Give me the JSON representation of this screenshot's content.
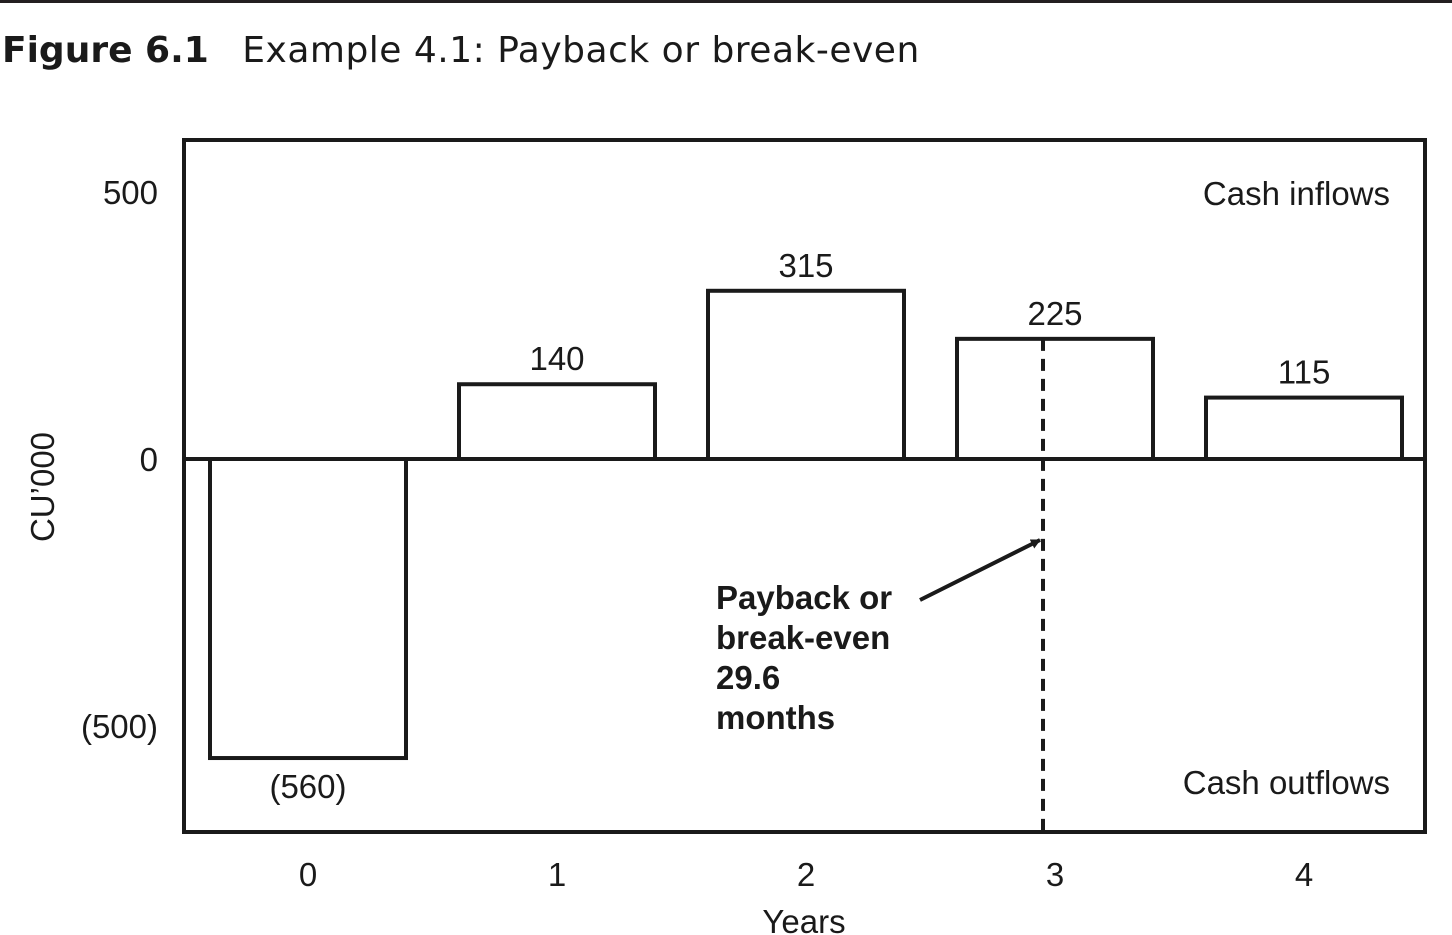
{
  "figure": {
    "label": "Figure 6.1",
    "caption": "Example 4.1: Payback or break-even"
  },
  "chart_data": {
    "type": "bar",
    "categories": [
      "0",
      "1",
      "2",
      "3",
      "4"
    ],
    "values": [
      -560,
      140,
      315,
      225,
      115
    ],
    "data_labels": [
      "(560)",
      "140",
      "315",
      "225",
      "115"
    ],
    "xlabel": "Years",
    "ylabel": "CU’000",
    "ylim": [
      -600,
      600
    ],
    "y_ticks": [
      {
        "value": 500,
        "label": "500"
      },
      {
        "value": 0,
        "label": "0"
      },
      {
        "value": -500,
        "label": "(500)"
      }
    ],
    "grid": false,
    "legend": null,
    "annotations": {
      "inflows": "Cash inflows",
      "outflows": "Cash outflows",
      "payback_lines": [
        "Payback or",
        "break-even",
        "29.6",
        "months"
      ],
      "payback_years": 2.467
    }
  }
}
